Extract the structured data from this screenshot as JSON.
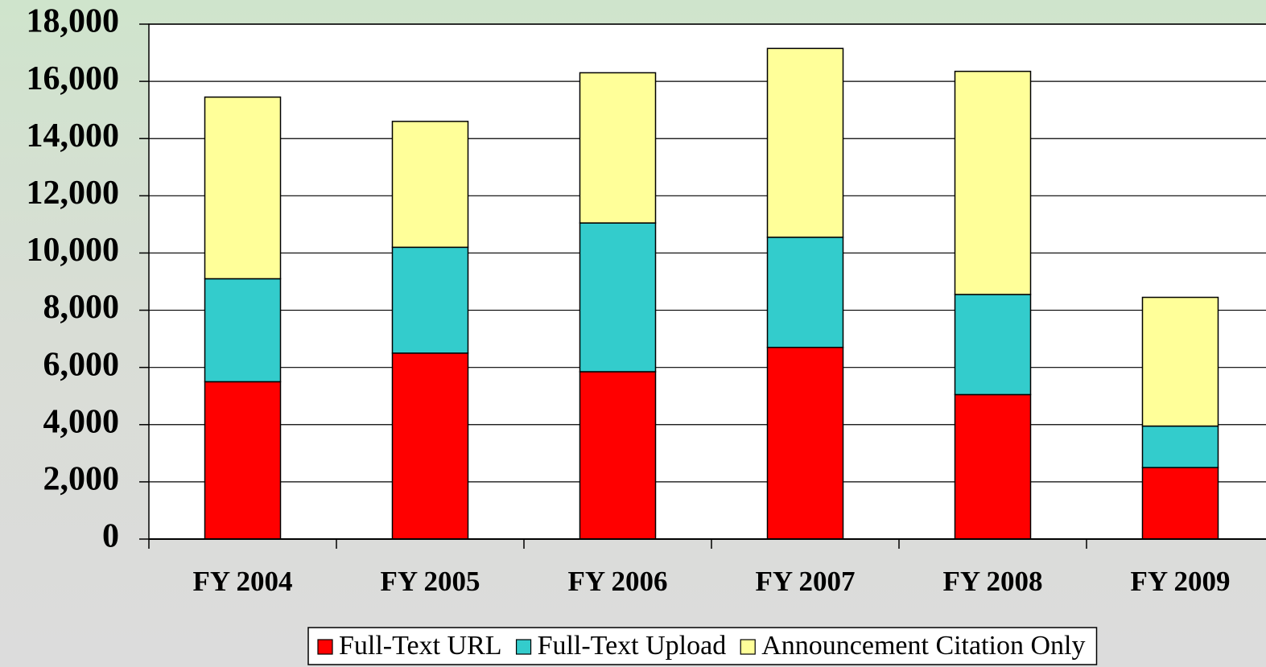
{
  "chart_data": {
    "type": "stacked_bar",
    "categories": [
      "FY 2004",
      "FY 2005",
      "FY 2006",
      "FY 2007",
      "FY 2008",
      "FY 2009"
    ],
    "series": [
      {
        "name": "Full-Text URL",
        "color": "#ff0000",
        "values": [
          5500,
          6500,
          5850,
          6700,
          5050,
          2500
        ]
      },
      {
        "name": "Full-Text Upload",
        "color": "#33cccc",
        "values": [
          3600,
          3700,
          5200,
          3850,
          3500,
          1450
        ]
      },
      {
        "name": "Announcement Citation Only",
        "color": "#ffff99",
        "values": [
          6350,
          4400,
          5250,
          6600,
          7800,
          4500
        ]
      }
    ],
    "ylim": [
      0,
      18000
    ],
    "yticks": [
      0,
      {
        "value": 2000,
        "label": "2,000"
      },
      {
        "value": 4000,
        "label": "4,000"
      },
      {
        "value": 6000,
        "label": "6,000"
      },
      {
        "value": 8000,
        "label": "8,000"
      },
      {
        "value": 10000,
        "label": "10,000"
      },
      {
        "value": 12000,
        "label": "12,000"
      },
      {
        "value": 14000,
        "label": "14,000"
      },
      {
        "value": 16000,
        "label": "16,000"
      },
      {
        "value": 18000,
        "label": "18,000"
      }
    ],
    "grid": true,
    "legend": "bottom"
  }
}
